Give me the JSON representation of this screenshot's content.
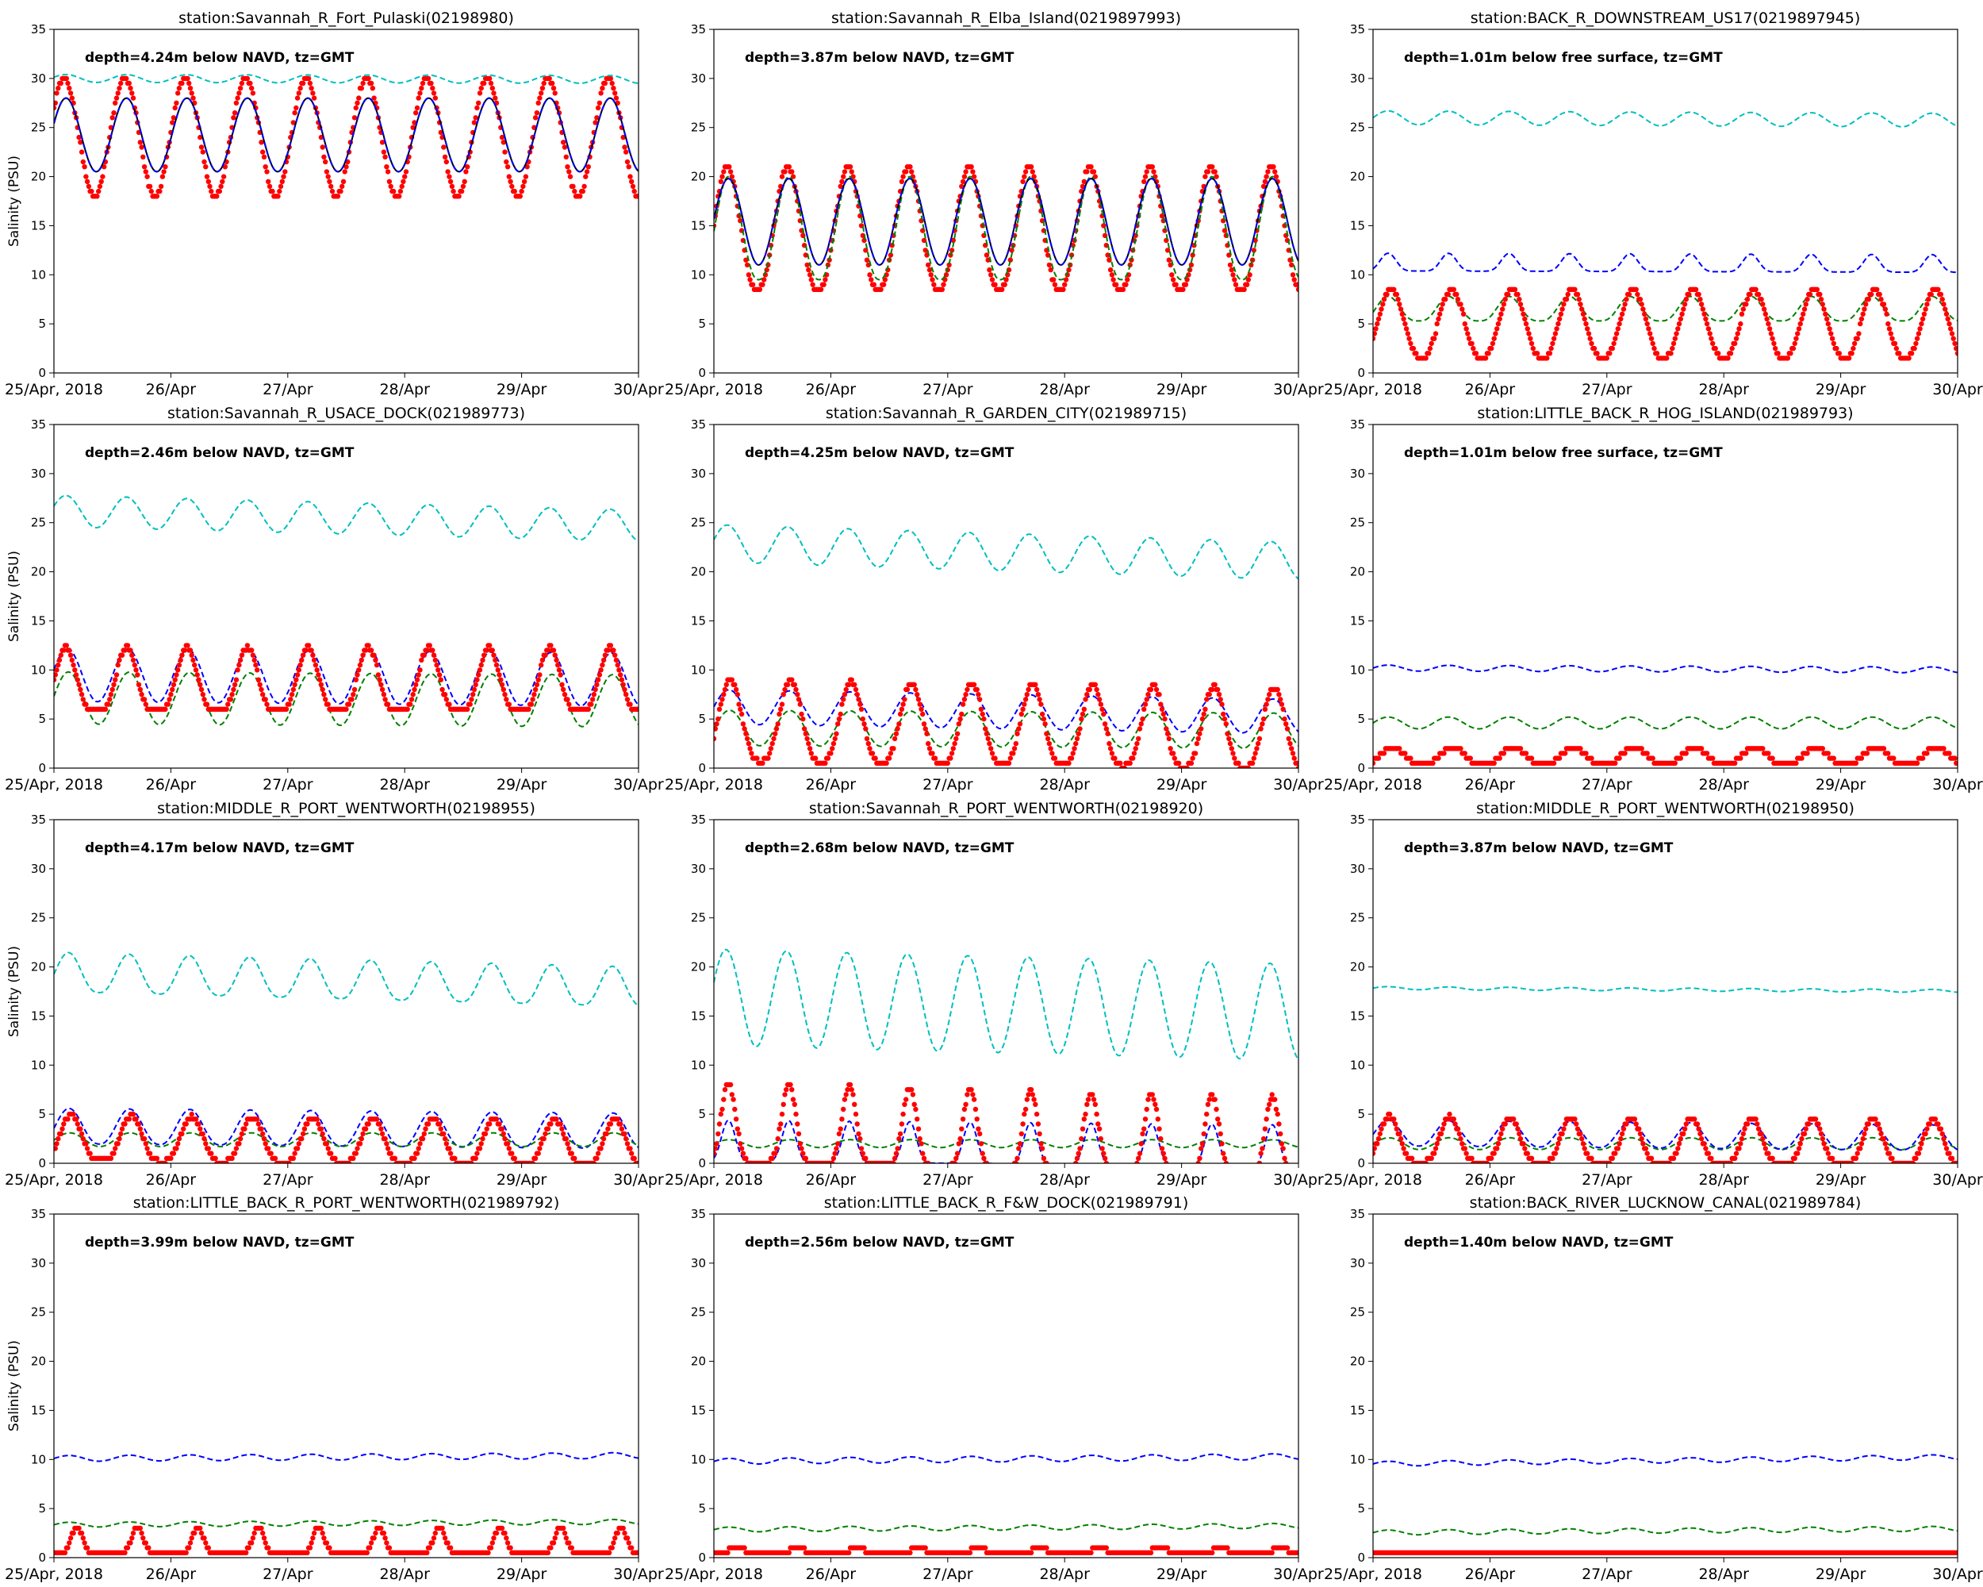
{
  "figure": {
    "x_tick_labels": [
      "25/Apr, 2018",
      "26/Apr",
      "27/Apr",
      "28/Apr",
      "29/Apr",
      "30/Apr"
    ],
    "y_ticks": [
      0,
      5,
      10,
      15,
      20,
      25,
      30,
      35
    ],
    "ylabel": "Salinity (PSU)",
    "colors": {
      "obs": "#ff0000",
      "run_blue": "#0000ff",
      "run_green": "#008000",
      "run_cyan": "#00bfbf",
      "run_black": "#000000"
    }
  },
  "chart_data": [
    {
      "type": "line",
      "title": "station:Savannah_R_Fort_Pulaski(02198980)",
      "annotation": "depth=4.24m below NAVD, tz=GMT",
      "xlabel": "",
      "ylabel": "Salinity (PSU)",
      "xlim": [
        0,
        5
      ],
      "ylim": [
        0,
        35
      ],
      "period": 0.517,
      "series": [
        {
          "name": "obs",
          "style": "dots",
          "color": "#ff0000",
          "baseline": 18,
          "amplitude": 12,
          "shape": 1.0,
          "phase": 0.17,
          "trend": 0
        },
        {
          "name": "run_cyan",
          "style": "dashed",
          "color": "#00bfbf",
          "baseline": 29.6,
          "amplitude": 0.8,
          "shape": 1.0,
          "phase": 0.2,
          "trend": -0.1
        },
        {
          "name": "run_green",
          "style": "dashed",
          "color": "#008000",
          "baseline": 20.5,
          "amplitude": 7.5,
          "shape": 1.0,
          "phase": 0.2,
          "trend": 0
        },
        {
          "name": "run_black",
          "style": "solid",
          "color": "#000000",
          "baseline": 20.5,
          "amplitude": 7.5,
          "shape": 1.0,
          "phase": 0.2,
          "trend": 0
        },
        {
          "name": "run_blue",
          "style": "dashed",
          "color": "#0000ff",
          "baseline": 20.5,
          "amplitude": 7.5,
          "shape": 1.0,
          "phase": 0.2,
          "trend": 0
        }
      ]
    },
    {
      "type": "line",
      "title": "station:Savannah_R_Elba_Island(0219897993)",
      "annotation": "depth=3.87m below NAVD, tz=GMT",
      "xlabel": "",
      "ylabel": "",
      "xlim": [
        0,
        5
      ],
      "ylim": [
        0,
        35
      ],
      "period": 0.517,
      "series": [
        {
          "name": "obs",
          "style": "dots",
          "color": "#ff0000",
          "baseline": 8.5,
          "amplitude": 12.5,
          "shape": 1.2,
          "phase": 0.22,
          "trend": 0
        },
        {
          "name": "run_green",
          "style": "dashed",
          "color": "#008000",
          "baseline": 9.5,
          "amplitude": 10.5,
          "shape": 1.2,
          "phase": 0.24,
          "trend": 0
        },
        {
          "name": "run_black",
          "style": "solid",
          "color": "#000000",
          "baseline": 11,
          "amplitude": 8.8,
          "shape": 1.0,
          "phase": 0.24,
          "trend": 0
        },
        {
          "name": "run_blue",
          "style": "dashed",
          "color": "#0000ff",
          "baseline": 11,
          "amplitude": 8.8,
          "shape": 1.0,
          "phase": 0.24,
          "trend": 0
        }
      ]
    },
    {
      "type": "line",
      "title": "station:BACK_R_DOWNSTREAM_US17(0219897945)",
      "annotation": "depth=1.01m below free surface, tz=GMT",
      "xlabel": "",
      "ylabel": "",
      "xlim": [
        0,
        5
      ],
      "ylim": [
        0,
        35
      ],
      "period": 0.517,
      "series": [
        {
          "name": "run_cyan",
          "style": "dashed",
          "color": "#00bfbf",
          "baseline": 25.3,
          "amplitude": 1.4,
          "shape": 1.0,
          "phase": 0.25,
          "trend": -0.25
        },
        {
          "name": "run_blue",
          "style": "dashed",
          "color": "#0000ff",
          "baseline": 10.4,
          "amplitude": 1.8,
          "shape": 3.0,
          "phase": 0.25,
          "trend": -0.15
        },
        {
          "name": "run_green",
          "style": "dashed",
          "color": "#008000",
          "baseline": 5.3,
          "amplitude": 2.5,
          "shape": 1.5,
          "phase": 0.25,
          "trend": 0
        },
        {
          "name": "obs",
          "style": "dots",
          "color": "#ff0000",
          "baseline": 1.5,
          "amplitude": 7.0,
          "shape": 1.2,
          "phase": 0.3,
          "trend": 0
        }
      ]
    },
    {
      "type": "line",
      "title": "station:Savannah_R_USACE_DOCK(021989773)",
      "annotation": "depth=2.46m below NAVD, tz=GMT",
      "xlabel": "",
      "ylabel": "Salinity (PSU)",
      "xlim": [
        0,
        5
      ],
      "ylim": [
        0,
        35
      ],
      "period": 0.517,
      "series": [
        {
          "name": "run_cyan",
          "style": "dashed",
          "color": "#00bfbf",
          "baseline": 24.6,
          "amplitude": 3.2,
          "shape": 1.0,
          "phase": 0.2,
          "trend": -1.5
        },
        {
          "name": "run_blue",
          "style": "dashed",
          "color": "#0000ff",
          "baseline": 6.8,
          "amplitude": 5.4,
          "shape": 1.0,
          "phase": 0.22,
          "trend": -0.5
        },
        {
          "name": "run_green",
          "style": "dashed",
          "color": "#008000",
          "baseline": 4.5,
          "amplitude": 5.3,
          "shape": 1.0,
          "phase": 0.24,
          "trend": -0.3
        },
        {
          "name": "obs",
          "style": "dots",
          "color": "#ff0000",
          "baseline": 5.8,
          "amplitude": 6.5,
          "shape": 1.8,
          "phase": 0.2,
          "trend": 0
        }
      ]
    },
    {
      "type": "line",
      "title": "station:Savannah_R_GARDEN_CITY(021989715)",
      "annotation": "depth=4.25m below NAVD, tz=GMT",
      "xlabel": "",
      "ylabel": "",
      "xlim": [
        0,
        5
      ],
      "ylim": [
        0,
        35
      ],
      "period": 0.517,
      "series": [
        {
          "name": "run_cyan",
          "style": "dashed",
          "color": "#00bfbf",
          "baseline": 21,
          "amplitude": 3.8,
          "shape": 1.0,
          "phase": 0.22,
          "trend": -1.8
        },
        {
          "name": "run_blue",
          "style": "dashed",
          "color": "#0000ff",
          "baseline": 4.5,
          "amplitude": 3.5,
          "shape": 1.0,
          "phase": 0.25,
          "trend": -1.0
        },
        {
          "name": "run_green",
          "style": "dashed",
          "color": "#008000",
          "baseline": 2.3,
          "amplitude": 3.6,
          "shape": 1.0,
          "phase": 0.26,
          "trend": -0.3
        },
        {
          "name": "obs",
          "style": "dots",
          "color": "#ff0000",
          "baseline": 0.8,
          "amplitude": 8.2,
          "shape": 1.5,
          "phase": 0.27,
          "trend": -0.8
        }
      ]
    },
    {
      "type": "line",
      "title": "station:LITTLE_BACK_R_HOG_ISLAND(021989793)",
      "annotation": "depth=1.01m below free surface, tz=GMT",
      "xlabel": "",
      "ylabel": "",
      "xlim": [
        0,
        5
      ],
      "ylim": [
        0,
        35
      ],
      "period": 0.517,
      "series": [
        {
          "name": "run_blue",
          "style": "dashed",
          "color": "#0000ff",
          "baseline": 9.9,
          "amplitude": 0.6,
          "shape": 1.0,
          "phase": 0.25,
          "trend": -0.2
        },
        {
          "name": "run_green",
          "style": "dashed",
          "color": "#008000",
          "baseline": 4.0,
          "amplitude": 1.2,
          "shape": 1.0,
          "phase": 0.25,
          "trend": 0
        },
        {
          "name": "obs",
          "style": "dots",
          "color": "#ff0000",
          "baseline": 0.3,
          "amplitude": 1.8,
          "shape": 1.2,
          "phase": 0.32,
          "trend": 0
        }
      ]
    },
    {
      "type": "line",
      "title": "station:MIDDLE_R_PORT_WENTWORTH(02198955)",
      "annotation": "depth=4.17m below NAVD, tz=GMT",
      "xlabel": "",
      "ylabel": "Salinity (PSU)",
      "xlim": [
        0,
        5
      ],
      "ylim": [
        0,
        35
      ],
      "period": 0.517,
      "series": [
        {
          "name": "run_cyan",
          "style": "dashed",
          "color": "#00bfbf",
          "baseline": 17.5,
          "amplitude": 4.0,
          "shape": 1.3,
          "phase": 0.24,
          "trend": -1.5
        },
        {
          "name": "run_blue",
          "style": "dashed",
          "color": "#0000ff",
          "baseline": 2.0,
          "amplitude": 3.6,
          "shape": 1.2,
          "phase": 0.25,
          "trend": -0.5
        },
        {
          "name": "run_green",
          "style": "dashed",
          "color": "#008000",
          "baseline": 1.7,
          "amplitude": 1.4,
          "shape": 1.0,
          "phase": 0.26,
          "trend": 0
        },
        {
          "name": "obs",
          "style": "dots",
          "color": "#ff0000",
          "baseline": 0.3,
          "amplitude": 4.6,
          "shape": 1.6,
          "phase": 0.28,
          "trend": -0.5
        }
      ]
    },
    {
      "type": "line",
      "title": "station:Savannah_R_PORT_WENTWORTH(02198920)",
      "annotation": "depth=2.68m below NAVD, tz=GMT",
      "xlabel": "",
      "ylabel": "",
      "xlim": [
        0,
        5
      ],
      "ylim": [
        0,
        35
      ],
      "period": 0.517,
      "series": [
        {
          "name": "run_cyan",
          "style": "dashed",
          "color": "#00bfbf",
          "baseline": 12.0,
          "amplitude": 9.8,
          "shape": 1.0,
          "phase": 0.2,
          "trend": -1.5
        },
        {
          "name": "run_green",
          "style": "dashed",
          "color": "#008000",
          "baseline": 1.6,
          "amplitude": 0.8,
          "shape": 1.0,
          "phase": 0.25,
          "trend": 0
        },
        {
          "name": "run_blue",
          "style": "dashed",
          "color": "#0000ff",
          "baseline": 0.2,
          "amplitude": 4.2,
          "shape": 4.0,
          "phase": 0.24,
          "trend": -0.5
        },
        {
          "name": "obs",
          "style": "dots",
          "color": "#ff0000",
          "baseline": 0.2,
          "amplitude": 8.0,
          "shape": 3.5,
          "phase": 0.24,
          "trend": -1.5
        }
      ]
    },
    {
      "type": "line",
      "title": "station:MIDDLE_R_PORT_WENTWORTH(02198950)",
      "annotation": "depth=3.87m below NAVD, tz=GMT",
      "xlabel": "",
      "ylabel": "",
      "xlim": [
        0,
        5
      ],
      "ylim": [
        0,
        35
      ],
      "period": 0.517,
      "series": [
        {
          "name": "run_cyan",
          "style": "dashed",
          "color": "#00bfbf",
          "baseline": 17.7,
          "amplitude": 0.3,
          "shape": 1.0,
          "phase": 0.25,
          "trend": -0.3
        },
        {
          "name": "run_green",
          "style": "dashed",
          "color": "#008000",
          "baseline": 1.4,
          "amplitude": 1.2,
          "shape": 1.0,
          "phase": 0.26,
          "trend": 0
        },
        {
          "name": "run_blue",
          "style": "dashed",
          "color": "#0000ff",
          "baseline": 1.8,
          "amplitude": 2.6,
          "shape": 1.2,
          "phase": 0.25,
          "trend": -0.5
        },
        {
          "name": "obs",
          "style": "dots",
          "color": "#ff0000",
          "baseline": 0.2,
          "amplitude": 4.6,
          "shape": 2.0,
          "phase": 0.27,
          "trend": -0.3
        }
      ]
    },
    {
      "type": "line",
      "title": "station:LITTLE_BACK_R_PORT_WENTWORTH(021989792)",
      "annotation": "depth=3.99m below NAVD, tz=GMT",
      "xlabel": "",
      "ylabel": "Salinity (PSU)",
      "xlim": [
        0,
        5
      ],
      "ylim": [
        0,
        35
      ],
      "period": 0.517,
      "series": [
        {
          "name": "run_blue",
          "style": "dashed",
          "color": "#0000ff",
          "baseline": 9.8,
          "amplitude": 0.6,
          "shape": 1.0,
          "phase": 0.25,
          "trend": 0.3
        },
        {
          "name": "run_green",
          "style": "dashed",
          "color": "#008000",
          "baseline": 3.1,
          "amplitude": 0.5,
          "shape": 1.0,
          "phase": 0.25,
          "trend": 0.3
        },
        {
          "name": "obs",
          "style": "dots",
          "color": "#ff0000",
          "baseline": 0.45,
          "amplitude": 2.7,
          "shape": 6.0,
          "phase": 0.38,
          "trend": 0
        }
      ]
    },
    {
      "type": "line",
      "title": "station:LITTLE_BACK_R_F&W_DOCK(021989791)",
      "annotation": "depth=2.56m below NAVD, tz=GMT",
      "xlabel": "",
      "ylabel": "",
      "xlim": [
        0,
        5
      ],
      "ylim": [
        0,
        35
      ],
      "period": 0.517,
      "series": [
        {
          "name": "run_blue",
          "style": "dashed",
          "color": "#0000ff",
          "baseline": 9.5,
          "amplitude": 0.6,
          "shape": 1.0,
          "phase": 0.25,
          "trend": 0.5
        },
        {
          "name": "run_green",
          "style": "dashed",
          "color": "#008000",
          "baseline": 2.6,
          "amplitude": 0.5,
          "shape": 1.0,
          "phase": 0.25,
          "trend": 0.4
        },
        {
          "name": "obs",
          "style": "dots",
          "color": "#ff0000",
          "baseline": 0.45,
          "amplitude": 0.8,
          "shape": 6.0,
          "phase": 0.38,
          "trend": 0
        }
      ]
    },
    {
      "type": "line",
      "title": "station:BACK_RIVER_LUCKNOW_CANAL(021989784)",
      "annotation": "depth=1.40m below NAVD, tz=GMT",
      "xlabel": "",
      "ylabel": "",
      "xlim": [
        0,
        5
      ],
      "ylim": [
        0,
        35
      ],
      "period": 0.517,
      "series": [
        {
          "name": "run_blue",
          "style": "dashed",
          "color": "#0000ff",
          "baseline": 9.3,
          "amplitude": 0.5,
          "shape": 1.0,
          "phase": 0.25,
          "trend": 0.7
        },
        {
          "name": "run_green",
          "style": "dashed",
          "color": "#008000",
          "baseline": 2.3,
          "amplitude": 0.5,
          "shape": 1.0,
          "phase": 0.25,
          "trend": 0.4
        },
        {
          "name": "obs",
          "style": "dots",
          "color": "#ff0000",
          "baseline": 0.3,
          "amplitude": 0.4,
          "shape": 1.0,
          "phase": 0.3,
          "trend": 0
        }
      ]
    }
  ]
}
